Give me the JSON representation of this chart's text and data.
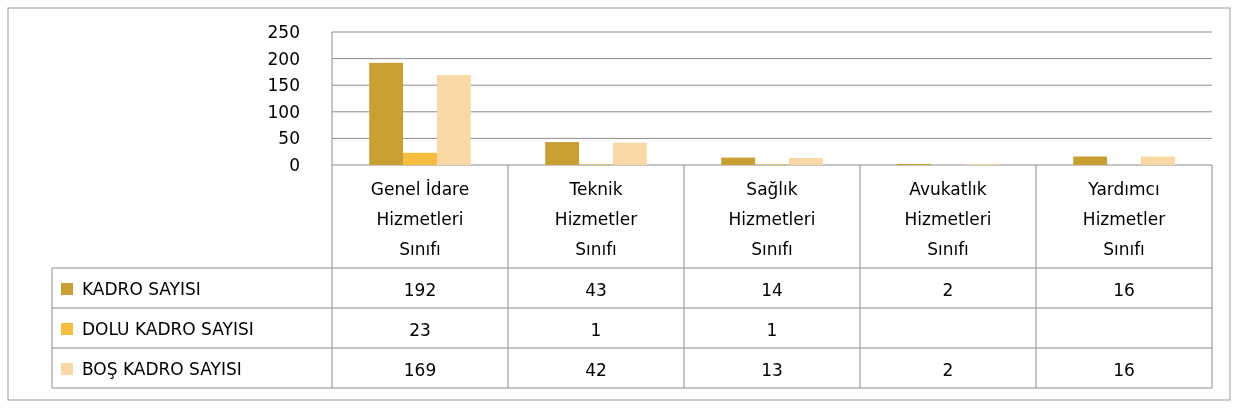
{
  "chart_data": {
    "type": "bar",
    "categories": [
      "Genel İdare\nHizmetleri\nSınıfı",
      "Teknik\nHizmetler\nSınıfı",
      "Sağlık\nHizmetleri\nSınıfı",
      "Avukatlık\nHizmetleri\nSınıfı",
      "Yardımcı\nHizmetler\nSınıfı"
    ],
    "series": [
      {
        "name": "KADRO SAYISI",
        "color": "#c99e33",
        "values": [
          192,
          43,
          14,
          2,
          16
        ]
      },
      {
        "name": "DOLU KADRO SAYISI",
        "color": "#f4bd3d",
        "values": [
          23,
          1,
          1,
          null,
          null
        ]
      },
      {
        "name": "BOŞ KADRO SAYISI",
        "color": "#f9d8a4",
        "values": [
          169,
          42,
          13,
          2,
          16
        ]
      }
    ],
    "ylim": [
      0,
      250
    ],
    "yticks": [
      0,
      50,
      100,
      150,
      200,
      250
    ],
    "grid": "y",
    "data_labels": true,
    "legend": "bottom left"
  }
}
